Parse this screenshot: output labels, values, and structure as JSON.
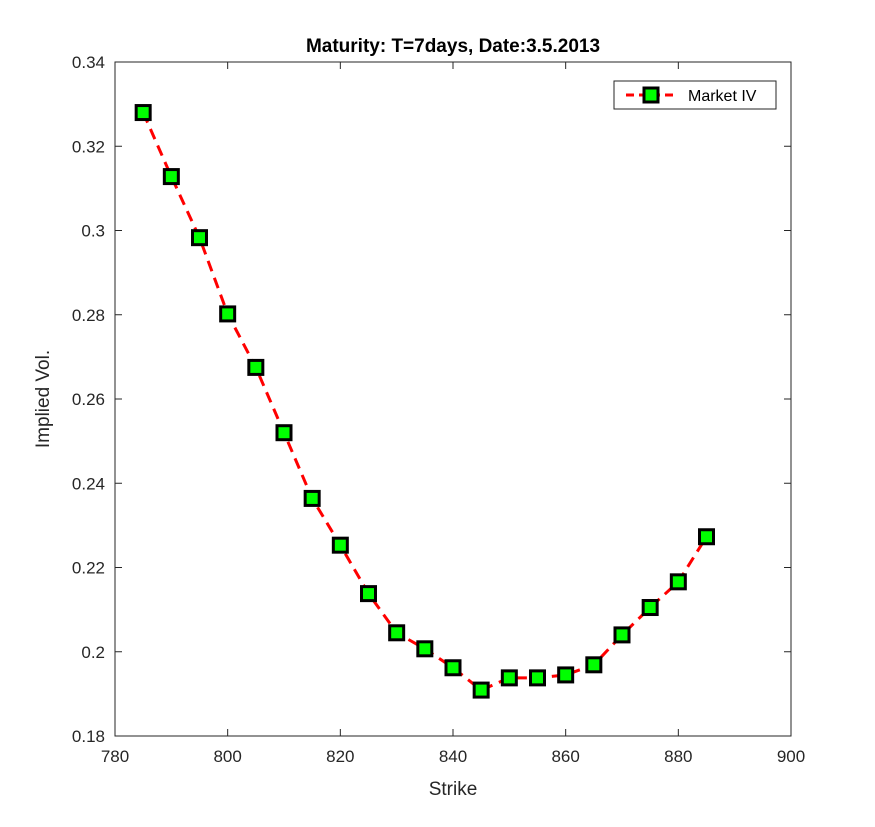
{
  "chart_data": {
    "type": "line",
    "title": "Maturity: T=7days, Date:3.5.2013",
    "xlabel": "Strike",
    "ylabel": "Implied Vol.",
    "xlim": [
      780,
      900
    ],
    "ylim": [
      0.18,
      0.34
    ],
    "xticks": [
      780,
      800,
      820,
      840,
      860,
      880,
      900
    ],
    "yticks": [
      0.18,
      0.2,
      0.22,
      0.24,
      0.26,
      0.28,
      0.3,
      0.32,
      0.34
    ],
    "xtick_labels": [
      "780",
      "800",
      "820",
      "840",
      "860",
      "880",
      "900"
    ],
    "ytick_labels": [
      "0.18",
      "0.2",
      "0.22",
      "0.24",
      "0.26",
      "0.28",
      "0.3",
      "0.32",
      "0.34"
    ],
    "grid": false,
    "legend": {
      "position": "top-right",
      "entries": [
        "Market IV"
      ]
    },
    "series": [
      {
        "name": "Market IV",
        "line_style": "dashed",
        "line_color": "#ff0000",
        "marker": "square",
        "marker_fill": "#00ff00",
        "marker_edge": "#000000",
        "x": [
          785,
          790,
          795,
          800,
          805,
          810,
          815,
          820,
          825,
          830,
          835,
          840,
          845,
          850,
          855,
          860,
          865,
          870,
          875,
          880,
          885
        ],
        "y": [
          0.328,
          0.3128,
          0.2983,
          0.2802,
          0.2675,
          0.252,
          0.2364,
          0.2253,
          0.2138,
          0.2045,
          0.2007,
          0.1962,
          0.1909,
          0.1938,
          0.1938,
          0.1945,
          0.1969,
          0.204,
          0.2105,
          0.2166,
          0.2273
        ]
      }
    ]
  }
}
